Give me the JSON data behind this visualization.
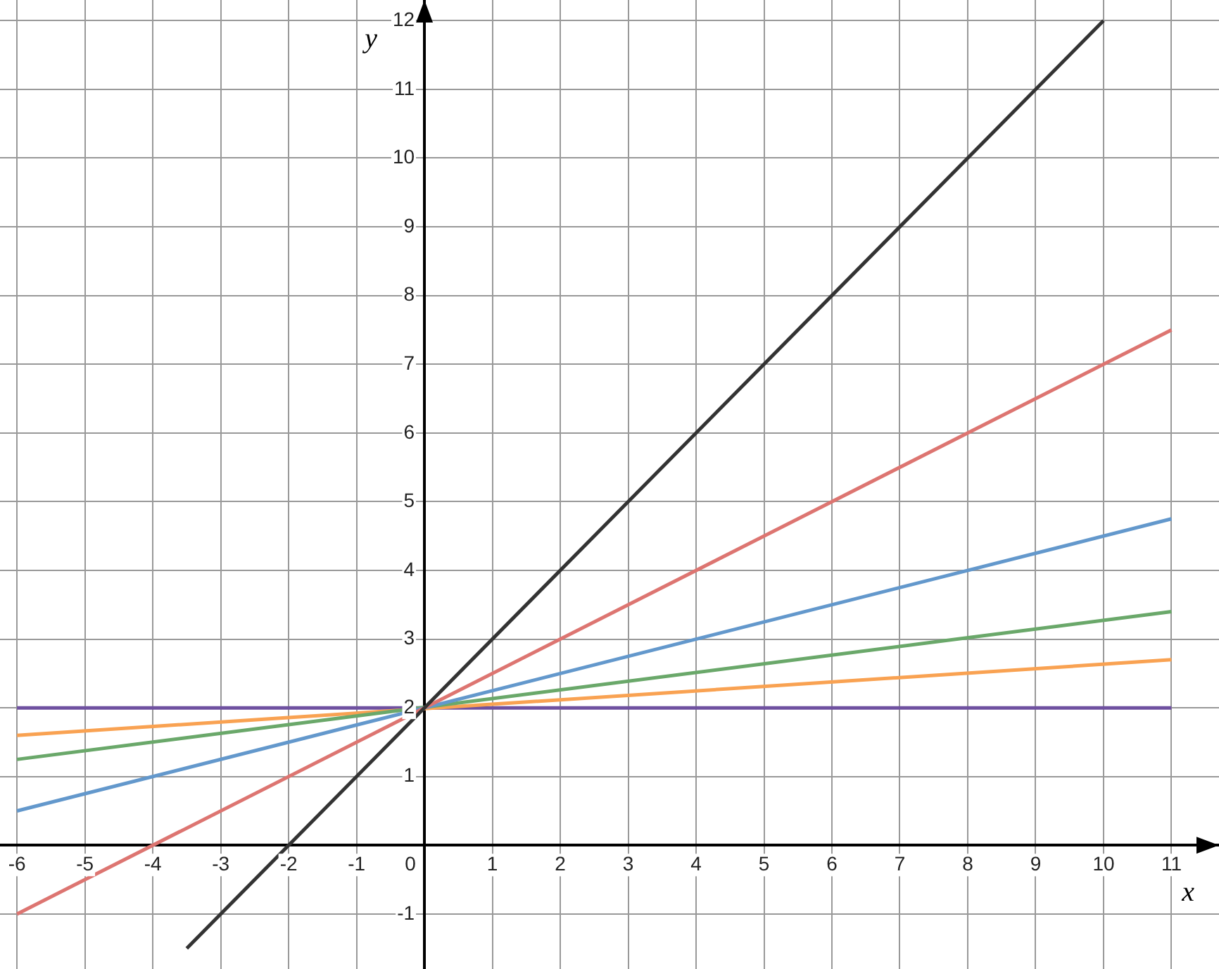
{
  "chart_data": {
    "type": "line",
    "xlabel": "x",
    "ylabel": "y",
    "xlim": [
      -6.25,
      11.7
    ],
    "ylim": [
      -1.8,
      12.3
    ],
    "xticks": [
      -6,
      -5,
      -4,
      -3,
      -2,
      -1,
      0,
      1,
      2,
      3,
      4,
      5,
      6,
      7,
      8,
      9,
      10,
      11
    ],
    "yticks": [
      -1,
      {
        "value": 0,
        "label": null
      },
      1,
      2,
      3,
      4,
      5,
      6,
      7,
      8,
      9,
      10,
      11,
      12
    ],
    "grid": true,
    "legend": false,
    "marker": "none",
    "line_style": "solid",
    "series": [
      {
        "color": "#333333",
        "x": [
          -3.5,
          10
        ],
        "values": [
          -1.5,
          12
        ]
      },
      {
        "color": "#dd7571",
        "x": [
          -6,
          11
        ],
        "values": [
          -1,
          7.5
        ]
      },
      {
        "color": "#6398cc",
        "x": [
          -6,
          11
        ],
        "values": [
          0.5,
          4.75
        ]
      },
      {
        "color": "#6aa86a",
        "x": [
          -6,
          11
        ],
        "values": [
          1.25,
          3.4
        ]
      },
      {
        "color": "#f9a252",
        "x": [
          -6,
          11
        ],
        "values": [
          1.6,
          2.7
        ]
      },
      {
        "color": "#6f51a0",
        "x": [
          -6,
          11
        ],
        "values": [
          2,
          2
        ]
      }
    ]
  }
}
